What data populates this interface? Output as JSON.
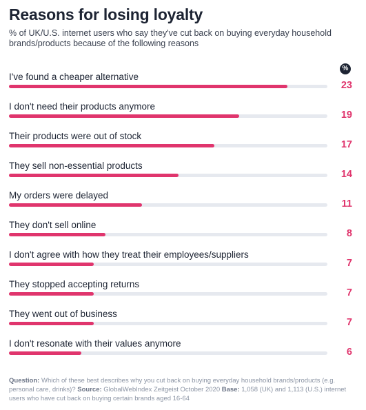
{
  "header": {
    "title": "Reasons for losing loyalty",
    "subtitle": "% of UK/U.S. internet users who say they've cut back on buying everyday household brands/products because of the following reasons",
    "unit_badge": "%"
  },
  "chart_data": {
    "type": "bar",
    "orientation": "horizontal",
    "title": "Reasons for losing loyalty",
    "subtitle": "% of UK/U.S. internet users who say they've cut back on buying everyday household brands/products because of the following reasons",
    "xlim": [
      0,
      25
    ],
    "categories": [
      "I've found a cheaper alternative",
      "I don't need their products anymore",
      "Their products were out of stock",
      "They sell non-essential products",
      "My orders were delayed",
      "They don't sell online",
      "I don't agree with how they treat their employees/suppliers",
      "They stopped accepting returns",
      "They went out of business",
      "I don't resonate with their values anymore"
    ],
    "values": [
      23,
      19,
      17,
      14,
      11,
      8,
      7,
      7,
      7,
      6
    ],
    "bar_color": "#e0356d",
    "track_color": "#e6e9ef",
    "grid": false
  },
  "footnote": {
    "question_label": "Question:",
    "question_text": "Which of these best describes why you cut back on buying everyday household brands/products (e.g. personal care, drinks)?",
    "source_label": "Source:",
    "source_text": "GlobalWebIndex Zeitgeist October 2020",
    "base_label": "Base:",
    "base_text": "1,058 (UK) and 1,113 (U.S.) internet users who have cut back on buying certain brands aged 16-64"
  }
}
